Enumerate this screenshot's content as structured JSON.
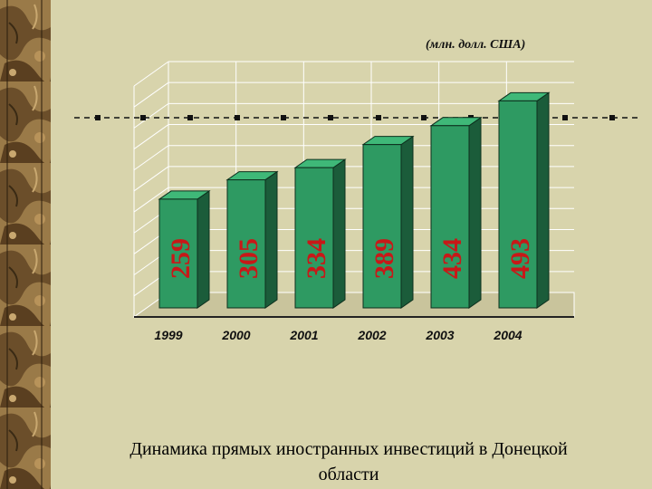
{
  "slide": {
    "unit_label": "(млн. долл. США)",
    "caption_line1": "Динамика прямых иностранных инвестиций в Донецкой",
    "caption_line2": "области"
  },
  "chart_data": {
    "type": "bar",
    "style": "3d",
    "categories": [
      "1999",
      "2000",
      "2001",
      "2002",
      "2003",
      "2004"
    ],
    "values": [
      259,
      305,
      334,
      389,
      434,
      493
    ],
    "unit": "(млн. долл. США)",
    "ylim": [
      0,
      550
    ],
    "grid": true,
    "legend": "none",
    "colors": {
      "bar_front": "#2e9a62",
      "bar_side": "#1b5c3a",
      "bar_top": "#3fb878",
      "value_label": "#c81818",
      "background": "#d8d4ac",
      "reference_line": "#111111"
    }
  }
}
